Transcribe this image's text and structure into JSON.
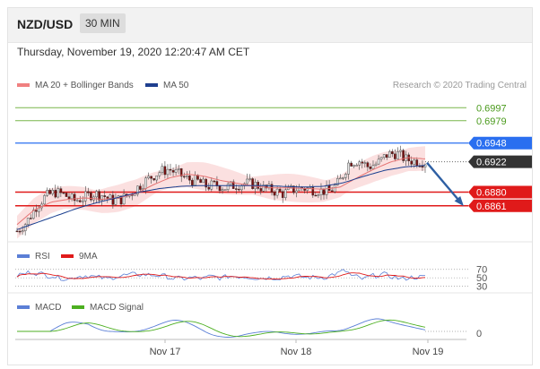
{
  "header": {
    "pair": "NZD/USD",
    "timeframe": "30 MIN"
  },
  "datetime": "Thursday, November 19, 2020 12:20:47 AM CET",
  "credit": "Research © 2020 Trading Central",
  "colors": {
    "bull": "#d9d9d9",
    "bear": "#7a1010",
    "ma20": "#e57373",
    "ma50": "#1a3f8f",
    "green": "#79b64a",
    "blue": "#2a6ff0",
    "red": "#e01a1a",
    "dark": "#333333"
  },
  "chart_data": [
    {
      "type": "candlestick",
      "legend": [
        {
          "label": "MA 20 + Bollinger Bands",
          "color": "#f08080"
        },
        {
          "label": "MA 50",
          "color": "#1f3f8f"
        }
      ],
      "x_ticks": [
        "Nov 17",
        "Nov 18",
        "Nov 19"
      ],
      "levels": [
        {
          "value": 0.6997,
          "label": "0.6997",
          "kind": "resistance-green"
        },
        {
          "value": 0.6979,
          "label": "0.6979",
          "kind": "resistance-green"
        },
        {
          "value": 0.6948,
          "label": "0.6948",
          "kind": "resistance-blue"
        },
        {
          "value": 0.6922,
          "label": "0.6922",
          "kind": "last-price"
        },
        {
          "value": 0.688,
          "label": "0.6880",
          "kind": "support-red"
        },
        {
          "value": 0.6861,
          "label": "0.6861",
          "kind": "support-red"
        }
      ],
      "ylim": [
        0.6816,
        0.7016
      ],
      "price_path": [
        0.6826,
        0.6838,
        0.686,
        0.6874,
        0.688,
        0.6876,
        0.6868,
        0.6872,
        0.6878,
        0.6876,
        0.6868,
        0.687,
        0.6878,
        0.689,
        0.69,
        0.6908,
        0.6912,
        0.6905,
        0.6898,
        0.6895,
        0.6888,
        0.689,
        0.6886,
        0.689,
        0.6892,
        0.6891,
        0.6885,
        0.6882,
        0.6878,
        0.6883,
        0.6886,
        0.6884,
        0.6882,
        0.6881,
        0.6895,
        0.6922,
        0.6924,
        0.6915,
        0.692,
        0.6932,
        0.6934,
        0.6925,
        0.6923,
        0.6922
      ],
      "ma20_path": [
        0.6835,
        0.6855,
        0.6866,
        0.687,
        0.6872,
        0.687,
        0.6872,
        0.6878,
        0.689,
        0.69,
        0.6905,
        0.6902,
        0.6896,
        0.6892,
        0.6888,
        0.6886,
        0.6886,
        0.6885,
        0.6884,
        0.6887,
        0.69,
        0.6912,
        0.6922,
        0.6928,
        0.6926
      ],
      "ma50_path": [
        0.6828,
        0.6838,
        0.6848,
        0.6858,
        0.6866,
        0.6873,
        0.688,
        0.6885,
        0.6888,
        0.6889,
        0.6889,
        0.6889,
        0.6889,
        0.6888,
        0.6887,
        0.6888,
        0.6893,
        0.6902,
        0.691,
        0.6915,
        0.6917
      ],
      "band_width": 0.0015,
      "forecast_arrow": {
        "from": 0.6922,
        "to": 0.6861
      }
    },
    {
      "type": "line",
      "legend": [
        {
          "label": "RSI",
          "color": "#5b7fd6"
        },
        {
          "label": "9MA",
          "color": "#e01a1a"
        }
      ],
      "levels": [
        {
          "value": 70,
          "label": "70"
        },
        {
          "value": 50,
          "label": "50"
        },
        {
          "value": 30,
          "label": "30"
        }
      ],
      "ylim": [
        25,
        80
      ]
    },
    {
      "type": "line",
      "legend": [
        {
          "label": "MACD",
          "color": "#5b7fd6"
        },
        {
          "label": "MACD Signal",
          "color": "#4caf20"
        }
      ],
      "levels": [
        {
          "value": 0,
          "label": "0"
        }
      ]
    }
  ]
}
